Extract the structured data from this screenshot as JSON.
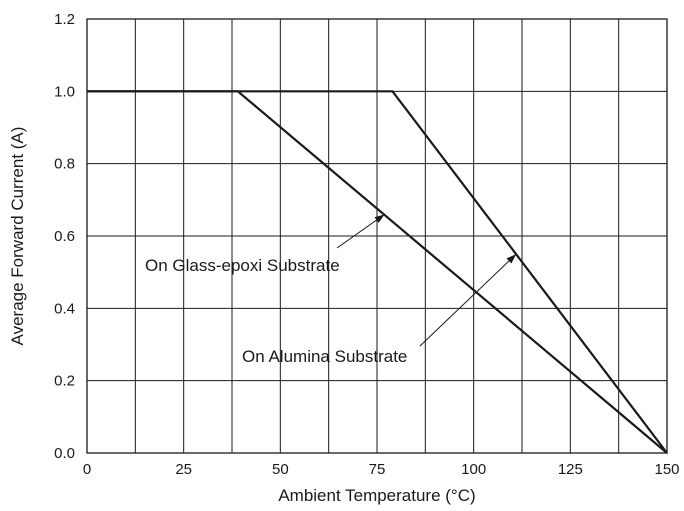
{
  "chart_data": {
    "type": "line",
    "title": "",
    "xlabel": "Ambient Temperature (°C)",
    "ylabel": "Average Forward Current (A)",
    "xlim": [
      0,
      150
    ],
    "ylim": [
      0,
      1.2
    ],
    "x_ticks": [
      "0",
      "25",
      "50",
      "75",
      "100",
      "125",
      "150"
    ],
    "y_ticks": [
      "0.0",
      "0.2",
      "0.4",
      "0.6",
      "0.8",
      "1.0",
      "1.2"
    ],
    "x_grid_step": 12.5,
    "y_grid_step": 0.2,
    "grid": true,
    "legend": "none",
    "series": [
      {
        "x": [
          0,
          39,
          150
        ],
        "y": [
          1.0,
          1.0,
          0.0
        ]
      },
      {
        "x": [
          0,
          79,
          150
        ],
        "y": [
          1.0,
          1.0,
          0.0
        ]
      }
    ],
    "annotations": [
      {
        "text": "On Glass-epoxi Substrate",
        "point_to": [
          77,
          0.66
        ]
      },
      {
        "text": "On Alumina Substrate",
        "point_to": [
          111,
          0.55
        ]
      }
    ],
    "colors": {
      "line": "#1a1a1a",
      "grid": "#1a1a1a"
    }
  }
}
